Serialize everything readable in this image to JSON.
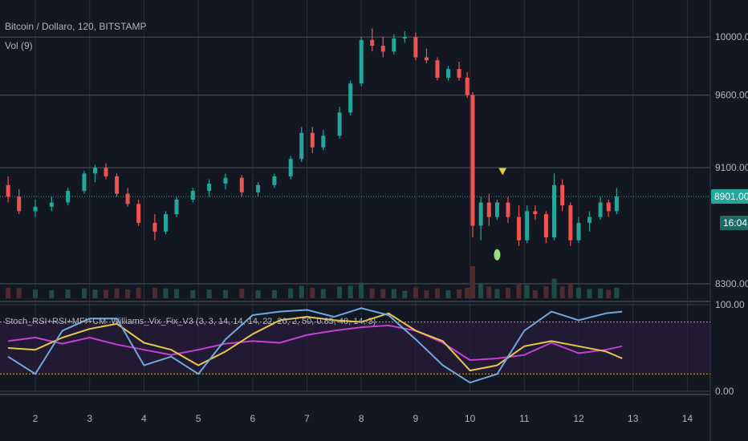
{
  "header": {
    "symbol": "Bitcoin / Dollaro, 120, BITSTAMP",
    "volume_indicator": "Vol (9)",
    "oscillator_title": "Stoch_RSI+RSI+MFI+CM_Williams_Vix_Fix_V3 (3, 3, 14, 14, 14, 22, 20, 2, 50, 0.85, 40, 14, 3)"
  },
  "current": {
    "price": "8901.00",
    "countdown": "16:04",
    "price_value": 8901
  },
  "colors": {
    "background": "#131722",
    "up": "#26a69a",
    "down": "#ef5350",
    "last_price": "#26a69a",
    "rsi": "#c43fd4",
    "stoch": "#e6c84a",
    "vix": "#6fa8dc"
  },
  "chart_data": [
    {
      "type": "candlestick",
      "x_ticks": [
        "2",
        "3",
        "4",
        "5",
        "6",
        "7",
        "8",
        "9",
        "10",
        "11",
        "12",
        "13",
        "14"
      ],
      "y_ticks": [
        "10000.00",
        "9600.00",
        "9100.00",
        "8901.00",
        "8300.00"
      ],
      "ylim": [
        8200,
        10200
      ],
      "grid": true,
      "markers": [
        {
          "kind": "triangle-down",
          "color": "#e6c84a",
          "x": 10.6,
          "y": 9070
        },
        {
          "kind": "dot",
          "color": "#9be07b",
          "x": 10.5,
          "y": 8500
        }
      ],
      "series": [
        {
          "name": "Price",
          "values": [
            {
              "x": 1.5,
              "o": 8980,
              "h": 9040,
              "l": 8860,
              "c": 8900
            },
            {
              "x": 1.7,
              "o": 8900,
              "h": 8950,
              "l": 8780,
              "c": 8800
            },
            {
              "x": 2.0,
              "o": 8800,
              "h": 8880,
              "l": 8760,
              "c": 8830
            },
            {
              "x": 2.3,
              "o": 8830,
              "h": 8900,
              "l": 8800,
              "c": 8860
            },
            {
              "x": 2.6,
              "o": 8860,
              "h": 8960,
              "l": 8840,
              "c": 8940
            },
            {
              "x": 2.9,
              "o": 8940,
              "h": 9080,
              "l": 8920,
              "c": 9060
            },
            {
              "x": 3.1,
              "o": 9060,
              "h": 9120,
              "l": 9000,
              "c": 9100
            },
            {
              "x": 3.3,
              "o": 9100,
              "h": 9130,
              "l": 9020,
              "c": 9040
            },
            {
              "x": 3.5,
              "o": 9040,
              "h": 9060,
              "l": 8900,
              "c": 8920
            },
            {
              "x": 3.7,
              "o": 8920,
              "h": 8960,
              "l": 8830,
              "c": 8850
            },
            {
              "x": 3.9,
              "o": 8850,
              "h": 8880,
              "l": 8700,
              "c": 8720
            },
            {
              "x": 4.2,
              "o": 8720,
              "h": 8780,
              "l": 8600,
              "c": 8660
            },
            {
              "x": 4.4,
              "o": 8660,
              "h": 8800,
              "l": 8640,
              "c": 8780
            },
            {
              "x": 4.6,
              "o": 8780,
              "h": 8900,
              "l": 8760,
              "c": 8880
            },
            {
              "x": 4.9,
              "o": 8880,
              "h": 8960,
              "l": 8860,
              "c": 8940
            },
            {
              "x": 5.2,
              "o": 8940,
              "h": 9020,
              "l": 8900,
              "c": 8990
            },
            {
              "x": 5.5,
              "o": 8990,
              "h": 9060,
              "l": 8950,
              "c": 9030
            },
            {
              "x": 5.8,
              "o": 9030,
              "h": 9050,
              "l": 8900,
              "c": 8930
            },
            {
              "x": 6.1,
              "o": 8930,
              "h": 9000,
              "l": 8900,
              "c": 8980
            },
            {
              "x": 6.4,
              "o": 8980,
              "h": 9060,
              "l": 8960,
              "c": 9040
            },
            {
              "x": 6.7,
              "o": 9040,
              "h": 9180,
              "l": 9020,
              "c": 9160
            },
            {
              "x": 6.9,
              "o": 9160,
              "h": 9380,
              "l": 9140,
              "c": 9340
            },
            {
              "x": 7.1,
              "o": 9340,
              "h": 9380,
              "l": 9200,
              "c": 9240
            },
            {
              "x": 7.3,
              "o": 9240,
              "h": 9360,
              "l": 9220,
              "c": 9320
            },
            {
              "x": 7.6,
              "o": 9320,
              "h": 9520,
              "l": 9300,
              "c": 9480
            },
            {
              "x": 7.8,
              "o": 9480,
              "h": 9700,
              "l": 9460,
              "c": 9680
            },
            {
              "x": 8.0,
              "o": 9680,
              "h": 10000,
              "l": 9660,
              "c": 9980
            },
            {
              "x": 8.2,
              "o": 9980,
              "h": 10060,
              "l": 9900,
              "c": 9940
            },
            {
              "x": 8.4,
              "o": 9940,
              "h": 10000,
              "l": 9860,
              "c": 9900
            },
            {
              "x": 8.6,
              "o": 9900,
              "h": 10020,
              "l": 9880,
              "c": 9990
            },
            {
              "x": 8.8,
              "o": 9990,
              "h": 10040,
              "l": 9960,
              "c": 10000
            },
            {
              "x": 9.0,
              "o": 10000,
              "h": 10030,
              "l": 9840,
              "c": 9860
            },
            {
              "x": 9.2,
              "o": 9860,
              "h": 9920,
              "l": 9820,
              "c": 9840
            },
            {
              "x": 9.4,
              "o": 9840,
              "h": 9860,
              "l": 9700,
              "c": 9720
            },
            {
              "x": 9.6,
              "o": 9720,
              "h": 9800,
              "l": 9700,
              "c": 9780
            },
            {
              "x": 9.8,
              "o": 9780,
              "h": 9830,
              "l": 9700,
              "c": 9720
            },
            {
              "x": 9.95,
              "o": 9720,
              "h": 9760,
              "l": 9580,
              "c": 9600
            },
            {
              "x": 10.05,
              "o": 9600,
              "h": 9620,
              "l": 8620,
              "c": 8700
            },
            {
              "x": 10.2,
              "o": 8700,
              "h": 8900,
              "l": 8600,
              "c": 8860
            },
            {
              "x": 10.35,
              "o": 8860,
              "h": 8920,
              "l": 8700,
              "c": 8760
            },
            {
              "x": 10.5,
              "o": 8760,
              "h": 8880,
              "l": 8740,
              "c": 8860
            },
            {
              "x": 10.7,
              "o": 8860,
              "h": 8900,
              "l": 8720,
              "c": 8760
            },
            {
              "x": 10.9,
              "o": 8760,
              "h": 8840,
              "l": 8560,
              "c": 8600
            },
            {
              "x": 11.05,
              "o": 8600,
              "h": 8840,
              "l": 8580,
              "c": 8800
            },
            {
              "x": 11.2,
              "o": 8800,
              "h": 8840,
              "l": 8740,
              "c": 8780
            },
            {
              "x": 11.4,
              "o": 8780,
              "h": 8800,
              "l": 8580,
              "c": 8620
            },
            {
              "x": 11.55,
              "o": 8620,
              "h": 9060,
              "l": 8600,
              "c": 8980
            },
            {
              "x": 11.7,
              "o": 8980,
              "h": 9020,
              "l": 8800,
              "c": 8840
            },
            {
              "x": 11.85,
              "o": 8840,
              "h": 8860,
              "l": 8560,
              "c": 8600
            },
            {
              "x": 12.0,
              "o": 8600,
              "h": 8760,
              "l": 8580,
              "c": 8720
            },
            {
              "x": 12.2,
              "o": 8720,
              "h": 8800,
              "l": 8660,
              "c": 8760
            },
            {
              "x": 12.4,
              "o": 8760,
              "h": 8900,
              "l": 8740,
              "c": 8860
            },
            {
              "x": 12.55,
              "o": 8860,
              "h": 8880,
              "l": 8760,
              "c": 8800
            },
            {
              "x": 12.7,
              "o": 8800,
              "h": 8960,
              "l": 8780,
              "c": 8901
            }
          ]
        }
      ]
    },
    {
      "type": "line",
      "y_ticks": [
        "100.00",
        "0.00"
      ],
      "ylim": [
        0,
        100
      ],
      "levels": [
        80,
        20
      ],
      "series": [
        {
          "name": "",
          "color": "#c43fd4",
          "x": [
            1.5,
            2,
            2.5,
            3,
            3.5,
            4,
            4.5,
            5,
            5.5,
            6,
            6.5,
            7,
            7.5,
            8,
            8.5,
            9,
            9.5,
            10,
            10.5,
            11,
            11.5,
            12,
            12.5,
            12.8
          ],
          "values": [
            58,
            62,
            55,
            62,
            54,
            48,
            42,
            48,
            55,
            58,
            56,
            65,
            70,
            74,
            76,
            70,
            56,
            36,
            38,
            42,
            56,
            44,
            48,
            52
          ]
        },
        {
          "name": "",
          "color": "#e6c84a",
          "x": [
            1.5,
            2,
            2.5,
            3,
            3.5,
            4,
            4.5,
            5,
            5.5,
            6,
            6.5,
            7,
            7.5,
            8,
            8.5,
            9,
            9.5,
            10,
            10.5,
            11,
            11.5,
            12,
            12.5,
            12.8
          ],
          "values": [
            50,
            48,
            62,
            72,
            78,
            56,
            48,
            30,
            46,
            66,
            82,
            86,
            82,
            80,
            90,
            70,
            58,
            24,
            30,
            52,
            58,
            52,
            46,
            38
          ]
        },
        {
          "name": "",
          "color": "#6fa8dc",
          "x": [
            1.5,
            2,
            2.5,
            3,
            3.5,
            4,
            4.5,
            5,
            5.5,
            6,
            6.5,
            7,
            7.5,
            8,
            8.5,
            9,
            9.5,
            10,
            10.5,
            11,
            11.5,
            12,
            12.5,
            12.8
          ],
          "values": [
            40,
            20,
            70,
            84,
            84,
            30,
            40,
            20,
            60,
            88,
            92,
            94,
            86,
            96,
            88,
            60,
            30,
            10,
            20,
            70,
            92,
            82,
            90,
            92
          ]
        }
      ]
    }
  ]
}
